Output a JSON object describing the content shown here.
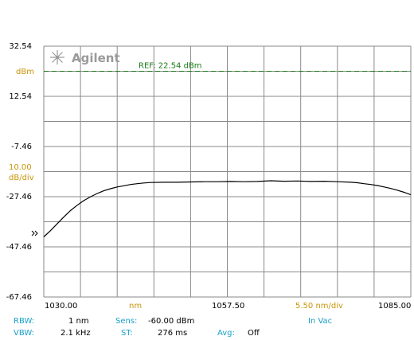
{
  "colors": {
    "background": "#ffffff",
    "grid": "#8a8a8a",
    "trace": "#000000",
    "reference": "#1a7a1a",
    "label_tan": "#c8960a",
    "label_teal": "#1aa0c8",
    "logo": "#9a9a9a"
  },
  "logo_text": "Agilent",
  "logo_icon": "agilent-spark-icon",
  "marker_icon": "reference-level-marker-icon",
  "unit_label": "dBm",
  "scale_value": "10.00",
  "scale_unit": "dB/div",
  "footer": {
    "x_start": "1030.00",
    "x_unit": "nm",
    "x_center": "1057.50",
    "x_span_div": "5.50 nm/div",
    "x_end": "1085.00",
    "rbw_label": "RBW:",
    "rbw_value": "1 nm",
    "sens_label": "Sens:",
    "sens_value": "-60.00 dBm",
    "medium": "In Vac",
    "vbw_label": "VBW:",
    "vbw_value": "2.1 kHz",
    "st_label": "ST:",
    "st_value": "276 ms",
    "avg_label": "Avg:",
    "avg_value": "Off"
  },
  "chart_data": {
    "type": "line",
    "xlim": [
      1030.0,
      1085.0
    ],
    "ylim": [
      -67.46,
      32.54
    ],
    "y_ticks": [
      "32.54",
      "12.54",
      "-7.46",
      "-27.46",
      "-47.46",
      "-67.46"
    ],
    "y_tick_values": [
      32.54,
      12.54,
      -7.46,
      -27.46,
      -47.46,
      -67.46
    ],
    "reference": {
      "label": "REF: 22.54 dBm",
      "value": 22.54
    },
    "series": [
      {
        "x": [
          1030.0,
          1031.0,
          1032.0,
          1033.0,
          1034.0,
          1035.0,
          1036.0,
          1037.0,
          1038.0,
          1039.0,
          1040.0,
          1041.0,
          1042.0,
          1043.0,
          1044.0,
          1045.0,
          1046.0,
          1048.0,
          1050.0,
          1052.0,
          1054.0,
          1056.0,
          1058.0,
          1060.0,
          1062.0,
          1064.0,
          1066.0,
          1068.0,
          1070.0,
          1072.0,
          1074.0,
          1076.0,
          1077.0,
          1078.0,
          1079.0,
          1080.0,
          1081.0,
          1082.0,
          1083.0,
          1084.0,
          1085.0
        ],
        "y": [
          -43.5,
          -41.0,
          -38.3,
          -35.6,
          -33.0,
          -30.9,
          -29.0,
          -27.5,
          -26.2,
          -25.1,
          -24.3,
          -23.6,
          -23.1,
          -22.6,
          -22.3,
          -22.0,
          -21.8,
          -21.7,
          -21.7,
          -21.6,
          -21.5,
          -21.5,
          -21.4,
          -21.5,
          -21.4,
          -21.1,
          -21.3,
          -21.2,
          -21.4,
          -21.3,
          -21.5,
          -21.7,
          -21.9,
          -22.3,
          -22.6,
          -23.0,
          -23.6,
          -24.2,
          -24.9,
          -25.7,
          -26.7
        ]
      }
    ]
  }
}
